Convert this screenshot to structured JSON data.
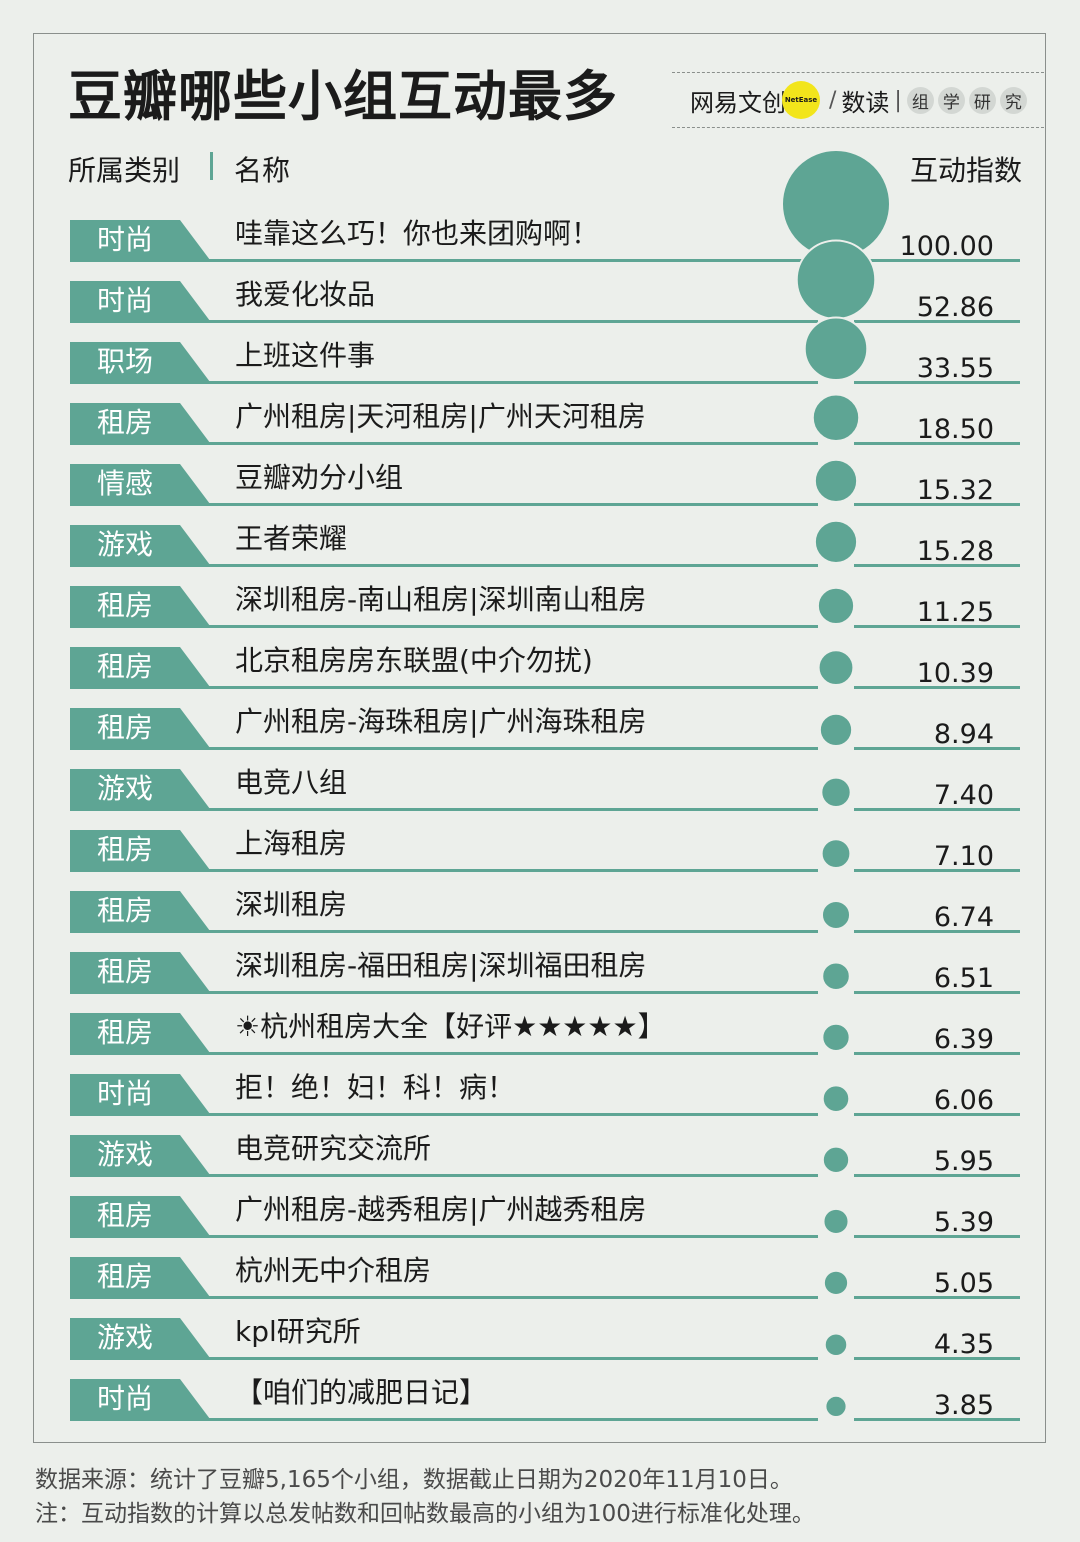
{
  "title": "豆瓣哪些小组互动最多",
  "brand": {
    "name": "网易文创",
    "badge": "NetEase",
    "slash": "/",
    "sub": "数读",
    "bar": "|",
    "chars": [
      "组",
      "学",
      "研",
      "究"
    ]
  },
  "headers": {
    "category": "所属类别",
    "name": "名称",
    "index": "互动指数"
  },
  "chart_data": {
    "type": "table",
    "title": "豆瓣哪些小组互动最多",
    "columns": [
      "所属类别",
      "名称",
      "互动指数"
    ],
    "max_value": 100,
    "bubble_color": "#5ea594",
    "rows": [
      {
        "category": "时尚",
        "name": "哇靠这么巧！你也来团购啊！",
        "value": 100.0,
        "label": "100.00"
      },
      {
        "category": "时尚",
        "name": "我爱化妆品",
        "value": 52.86,
        "label": "52.86"
      },
      {
        "category": "职场",
        "name": "上班这件事",
        "value": 33.55,
        "label": "33.55"
      },
      {
        "category": "租房",
        "name": "广州租房|天河租房|广州天河租房",
        "value": 18.5,
        "label": "18.50"
      },
      {
        "category": "情感",
        "name": "豆瓣劝分小组",
        "value": 15.32,
        "label": "15.32"
      },
      {
        "category": "游戏",
        "name": "王者荣耀",
        "value": 15.28,
        "label": "15.28"
      },
      {
        "category": "租房",
        "name": "深圳租房-南山租房|深圳南山租房",
        "value": 11.25,
        "label": "11.25"
      },
      {
        "category": "租房",
        "name": "北京租房房东联盟(中介勿扰)",
        "value": 10.39,
        "label": "10.39"
      },
      {
        "category": "租房",
        "name": "广州租房-海珠租房|广州海珠租房",
        "value": 8.94,
        "label": "8.94"
      },
      {
        "category": "游戏",
        "name": "电竞八组",
        "value": 7.4,
        "label": "7.40"
      },
      {
        "category": "租房",
        "name": "上海租房",
        "value": 7.1,
        "label": "7.10"
      },
      {
        "category": "租房",
        "name": "深圳租房",
        "value": 6.74,
        "label": "6.74"
      },
      {
        "category": "租房",
        "name": "深圳租房-福田租房|深圳福田租房",
        "value": 6.51,
        "label": "6.51"
      },
      {
        "category": "租房",
        "name": "☀杭州租房大全【好评★★★★★】",
        "value": 6.39,
        "label": "6.39"
      },
      {
        "category": "时尚",
        "name": "拒！绝！妇！科！病！",
        "value": 6.06,
        "label": "6.06"
      },
      {
        "category": "游戏",
        "name": "电竞研究交流所",
        "value": 5.95,
        "label": "5.95"
      },
      {
        "category": "租房",
        "name": "广州租房-越秀租房|广州越秀租房",
        "value": 5.39,
        "label": "5.39"
      },
      {
        "category": "租房",
        "name": "杭州无中介租房",
        "value": 5.05,
        "label": "5.05"
      },
      {
        "category": "游戏",
        "name": "kpl研究所",
        "value": 4.35,
        "label": "4.35"
      },
      {
        "category": "时尚",
        "name": "【咱们的减肥日记】",
        "value": 3.85,
        "label": "3.85"
      }
    ]
  },
  "notes": {
    "source": "数据来源：统计了豆瓣5,165个小组，数据截止日期为2020年11月10日。",
    "method": "注：互动指数的计算以总发帖数和回帖数最高的小组为100进行标准化处理。"
  }
}
